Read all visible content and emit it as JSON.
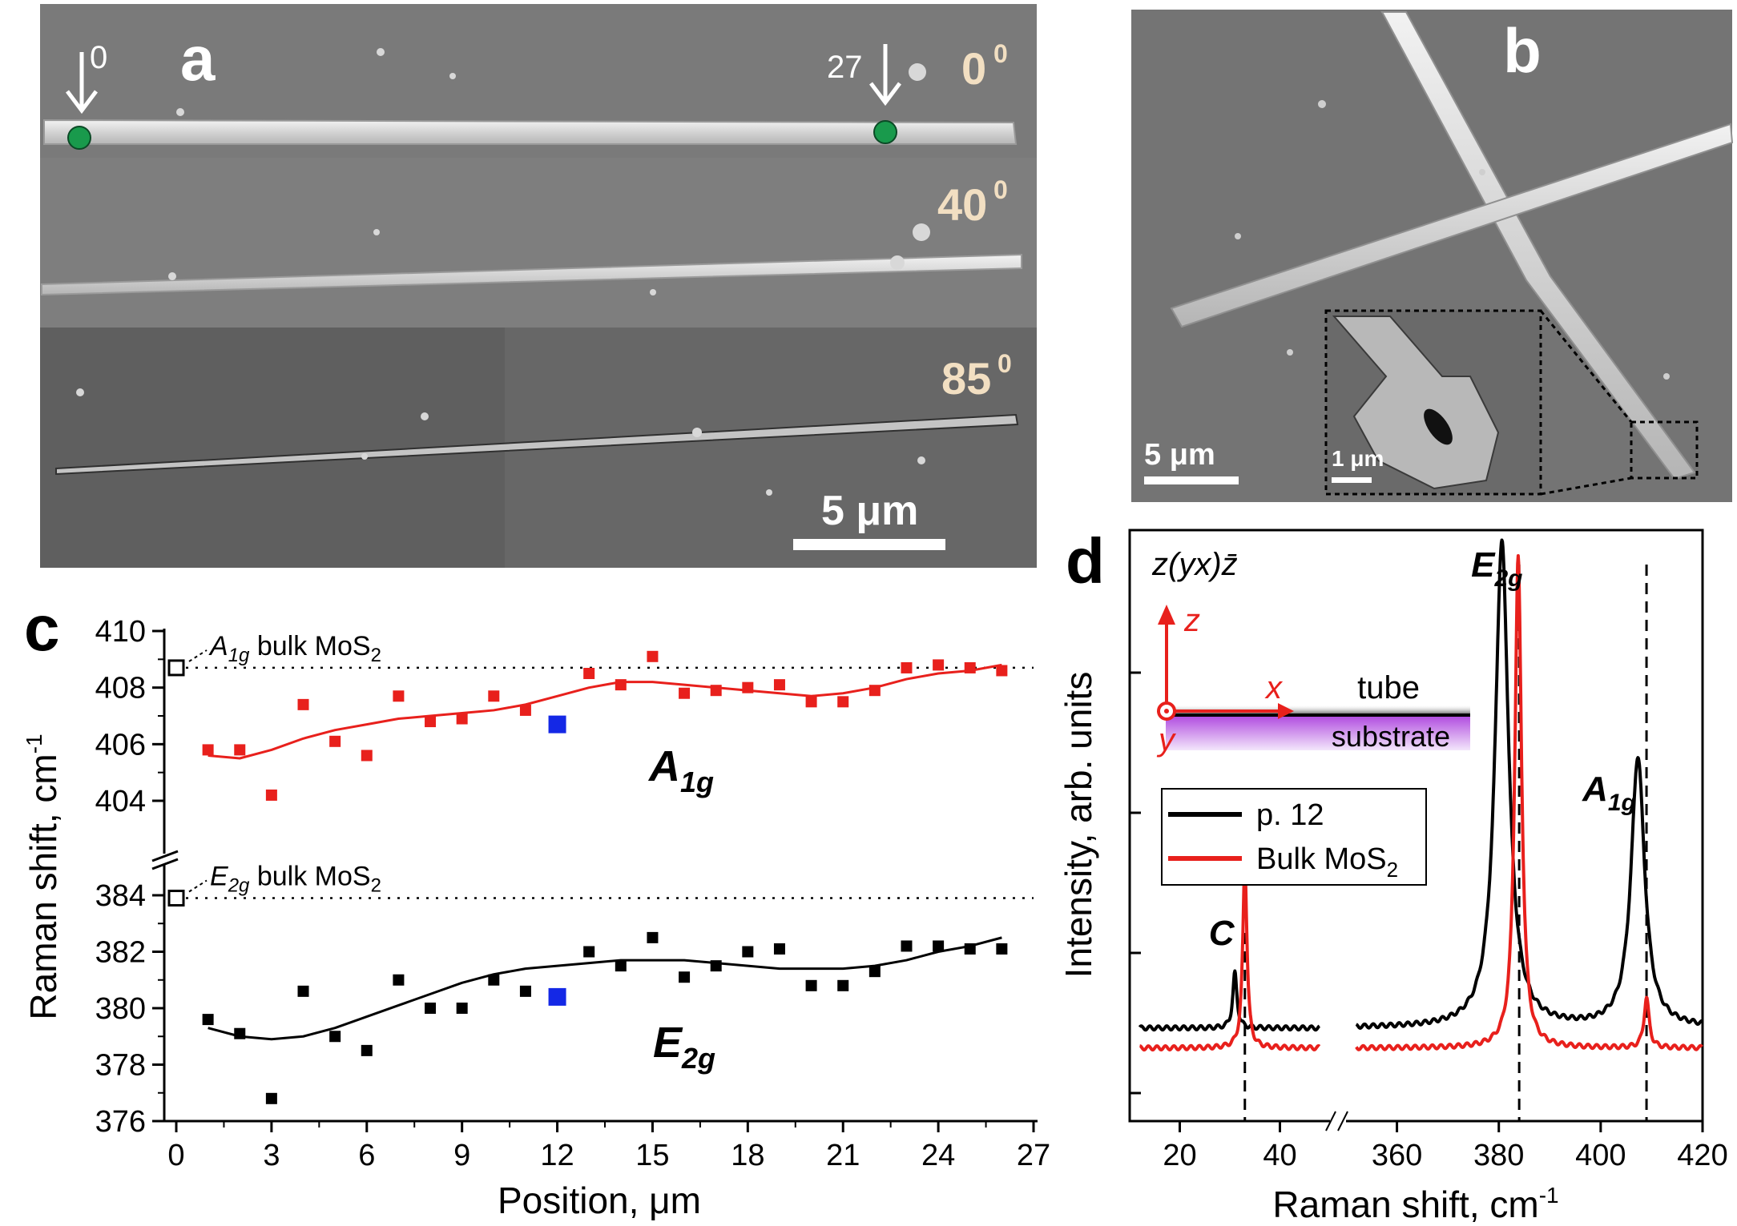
{
  "colors": {
    "red": "#e8201c",
    "blue": "#1428e6",
    "black": "#000000",
    "sem_bg": "#7b7b7b",
    "green": "#199a4c",
    "substrate": "#b24fe0"
  },
  "panel_a": {
    "label": "a",
    "angles": [
      "0",
      "40",
      "85"
    ],
    "angle_sup": "0",
    "marker_0": "0",
    "marker_27": "27",
    "scale_bar": "5 μm"
  },
  "panel_b": {
    "label": "b",
    "scale_bar": "5 μm",
    "inset_scale_bar": "1 μm"
  },
  "chart_data": [
    {
      "panel": "c",
      "type": "scatter",
      "xlabel": "Position, μm",
      "ylabel": "Raman shift, cm",
      "ylabel_sup": "-1",
      "xlim": [
        0,
        27
      ],
      "xticks": [
        "0",
        "3",
        "6",
        "9",
        "12",
        "15",
        "18",
        "21",
        "24",
        "27"
      ],
      "yticks_upper": [
        "404",
        "406",
        "408",
        "410"
      ],
      "yticks_lower": [
        "376",
        "378",
        "380",
        "382",
        "384"
      ],
      "ylim_upper": [
        403,
        410
      ],
      "ylim_lower": [
        376,
        385
      ],
      "reference_lines": [
        {
          "name": "A1g bulk",
          "value": 408.7,
          "label_main": "A",
          "label_sub": "1g",
          "label_rest": " bulk MoS",
          "label_sub2": "2"
        },
        {
          "name": "E2g bulk",
          "value": 383.9,
          "label_main": "E",
          "label_sub": "2g",
          "label_rest": " bulk MoS",
          "label_sub2": "2"
        }
      ],
      "series": [
        {
          "name": "A1g",
          "label_main": "A",
          "label_sub": "1g",
          "color": "#e8201c",
          "x": [
            1,
            2,
            3,
            4,
            5,
            6,
            7,
            8,
            9,
            10,
            11,
            13,
            14,
            15,
            16,
            17,
            18,
            19,
            20,
            21,
            22,
            23,
            24,
            25,
            26
          ],
          "y": [
            405.8,
            405.8,
            404.2,
            407.4,
            406.1,
            405.6,
            407.7,
            406.8,
            406.9,
            407.7,
            407.2,
            408.5,
            408.1,
            409.1,
            407.8,
            407.9,
            408.0,
            408.1,
            407.5,
            407.5,
            407.9,
            408.7,
            408.8,
            408.7,
            408.6
          ],
          "highlight": {
            "x": 12,
            "y": 406.7,
            "color": "#1428e6"
          },
          "fit": [
            [
              1,
              405.6
            ],
            [
              2,
              405.5
            ],
            [
              3,
              405.8
            ],
            [
              4,
              406.2
            ],
            [
              5,
              406.5
            ],
            [
              6,
              406.7
            ],
            [
              7,
              406.9
            ],
            [
              8,
              407.0
            ],
            [
              9,
              407.1
            ],
            [
              10,
              407.2
            ],
            [
              11,
              407.4
            ],
            [
              12,
              407.7
            ],
            [
              13,
              408.0
            ],
            [
              14,
              408.2
            ],
            [
              15,
              408.2
            ],
            [
              16,
              408.1
            ],
            [
              17,
              408.0
            ],
            [
              18,
              407.9
            ],
            [
              19,
              407.8
            ],
            [
              20,
              407.7
            ],
            [
              21,
              407.8
            ],
            [
              22,
              408.0
            ],
            [
              23,
              408.3
            ],
            [
              24,
              408.5
            ],
            [
              25,
              408.6
            ],
            [
              26,
              408.8
            ]
          ]
        },
        {
          "name": "E2g",
          "label_main": "E",
          "label_sub": "2g",
          "color": "#000000",
          "x": [
            1,
            2,
            3,
            4,
            5,
            6,
            7,
            8,
            9,
            10,
            11,
            13,
            14,
            15,
            16,
            17,
            18,
            19,
            20,
            21,
            22,
            23,
            24,
            25,
            26
          ],
          "y": [
            379.6,
            379.1,
            376.8,
            380.6,
            379.0,
            378.5,
            381.0,
            380.0,
            380.0,
            381.0,
            380.6,
            382.0,
            381.5,
            382.5,
            381.1,
            381.5,
            382.0,
            382.1,
            380.8,
            380.8,
            381.3,
            382.2,
            382.2,
            382.1,
            382.1
          ],
          "highlight": {
            "x": 12,
            "y": 380.4,
            "color": "#1428e6"
          },
          "fit": [
            [
              1,
              379.3
            ],
            [
              2,
              379.0
            ],
            [
              3,
              378.9
            ],
            [
              4,
              379.0
            ],
            [
              5,
              379.3
            ],
            [
              6,
              379.7
            ],
            [
              7,
              380.1
            ],
            [
              8,
              380.5
            ],
            [
              9,
              380.9
            ],
            [
              10,
              381.2
            ],
            [
              11,
              381.4
            ],
            [
              12,
              381.5
            ],
            [
              13,
              381.6
            ],
            [
              14,
              381.7
            ],
            [
              15,
              381.7
            ],
            [
              16,
              381.7
            ],
            [
              17,
              381.6
            ],
            [
              18,
              381.5
            ],
            [
              19,
              381.4
            ],
            [
              20,
              381.4
            ],
            [
              21,
              381.4
            ],
            [
              22,
              381.5
            ],
            [
              23,
              381.7
            ],
            [
              24,
              382.0
            ],
            [
              25,
              382.2
            ],
            [
              26,
              382.5
            ]
          ]
        }
      ]
    },
    {
      "panel": "d",
      "type": "line",
      "xlabel": "Raman shift, cm",
      "xlabel_sup": "-1",
      "ylabel": "Intensity, arb. units",
      "xticks_left": [
        "20",
        "40"
      ],
      "xticks_right": [
        "360",
        "380",
        "400",
        "420"
      ],
      "xlim_left": [
        10,
        50
      ],
      "xlim_right": [
        350,
        420
      ],
      "geometry_label": "z(yx)z̄",
      "axis_labels": {
        "z": "z",
        "x": "x",
        "y": "y"
      },
      "layer_labels": {
        "tube": "tube",
        "substrate": "substrate"
      },
      "peak_labels": [
        {
          "main": "C",
          "sub": "",
          "x": 33
        },
        {
          "main": "E",
          "sub": "2g",
          "x": 384
        },
        {
          "main": "A",
          "sub": "1g",
          "x": 409
        }
      ],
      "dashed_lines_x": [
        33,
        384,
        409
      ],
      "legend": [
        {
          "name": "p. 12",
          "color": "#000000"
        },
        {
          "name": "Bulk MoS",
          "sub": "2",
          "color": "#e8201c"
        }
      ],
      "series": [
        {
          "name": "p. 12",
          "color": "#000000",
          "baseline": 0.09,
          "peaks": [
            {
              "x": 31.0,
              "h": 0.11,
              "w": 0.5
            },
            {
              "x": 380.6,
              "h": 0.97,
              "w": 1.6
            },
            {
              "x": 407.3,
              "h": 0.54,
              "w": 1.6
            }
          ]
        },
        {
          "name": "Bulk MoS2",
          "color": "#e8201c",
          "baseline": 0.05,
          "peaks": [
            {
              "x": 33.0,
              "h": 0.37,
              "w": 0.5
            },
            {
              "x": 383.8,
              "h": 0.98,
              "w": 0.8
            },
            {
              "x": 409.0,
              "h": 0.1,
              "w": 0.6
            }
          ]
        }
      ]
    }
  ]
}
